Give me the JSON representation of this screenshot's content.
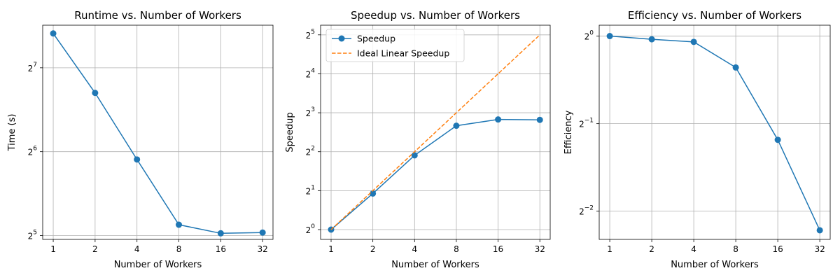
{
  "chart_data": [
    {
      "type": "line",
      "title": "Runtime vs. Number of Workers",
      "xlabel": "Number of Workers",
      "ylabel": "Time (s)",
      "x_scale": "log2",
      "y_scale": "log2",
      "x_ticks": [
        "1",
        "2",
        "4",
        "8",
        "16",
        "32"
      ],
      "y_ticks": [
        {
          "base": "2",
          "exp": "5",
          "value": 32
        },
        {
          "base": "2",
          "exp": "6",
          "value": 64
        },
        {
          "base": "2",
          "exp": "7",
          "value": 128
        }
      ],
      "xlim": [
        0.84,
        38
      ],
      "ylim": [
        31.0,
        182
      ],
      "grid": true,
      "series": [
        {
          "color": "#1f77b4",
          "style": "solid",
          "marker": "circle",
          "x": [
            1,
            2,
            4,
            8,
            16,
            32
          ],
          "y": [
            170.0,
            104.0,
            60.0,
            35.0,
            32.6,
            32.8
          ]
        }
      ]
    },
    {
      "type": "line",
      "title": "Speedup vs. Number of Workers",
      "xlabel": "Number of Workers",
      "ylabel": "Speedup",
      "x_scale": "log2",
      "y_scale": "log2",
      "x_ticks": [
        "1",
        "2",
        "4",
        "8",
        "16",
        "32"
      ],
      "y_ticks": [
        {
          "base": "2",
          "exp": "0",
          "value": 1
        },
        {
          "base": "2",
          "exp": "1",
          "value": 2
        },
        {
          "base": "2",
          "exp": "2",
          "value": 4
        },
        {
          "base": "2",
          "exp": "3",
          "value": 8
        },
        {
          "base": "2",
          "exp": "4",
          "value": 16
        },
        {
          "base": "2",
          "exp": "5",
          "value": 32
        }
      ],
      "xlim": [
        0.84,
        38
      ],
      "ylim": [
        0.84,
        38
      ],
      "grid": true,
      "legend": {
        "placement": "top-left",
        "entries": [
          "Speedup",
          "Ideal Linear Speedup"
        ]
      },
      "series": [
        {
          "name": "Speedup",
          "color": "#1f77b4",
          "style": "solid",
          "marker": "circle",
          "x": [
            1,
            2,
            4,
            8,
            16,
            32
          ],
          "y": [
            1.0,
            1.9,
            3.75,
            6.35,
            7.1,
            7.05
          ]
        },
        {
          "name": "Ideal Linear Speedup",
          "color": "#ff7f0e",
          "style": "dashed",
          "marker": "none",
          "x": [
            1,
            2,
            4,
            8,
            16,
            32
          ],
          "y": [
            1,
            2,
            4,
            8,
            16,
            32
          ]
        }
      ]
    },
    {
      "type": "line",
      "title": "Efficiency vs. Number of Workers",
      "xlabel": "Number of Workers",
      "ylabel": "Efficiency",
      "x_scale": "log2",
      "y_scale": "log2",
      "x_ticks": [
        "1",
        "2",
        "4",
        "8",
        "16",
        "32"
      ],
      "y_ticks": [
        {
          "base": "2",
          "exp": "−2",
          "value": 0.25
        },
        {
          "base": "2",
          "exp": "−1",
          "value": 0.5
        },
        {
          "base": "2",
          "exp": "0",
          "value": 1
        }
      ],
      "xlim": [
        0.84,
        38
      ],
      "ylim": [
        0.2,
        1.09
      ],
      "grid": true,
      "series": [
        {
          "color": "#1f77b4",
          "style": "solid",
          "marker": "circle",
          "x": [
            1,
            2,
            4,
            8,
            16,
            32
          ],
          "y": [
            1.0,
            0.975,
            0.955,
            0.78,
            0.44,
            0.215
          ]
        }
      ]
    }
  ]
}
